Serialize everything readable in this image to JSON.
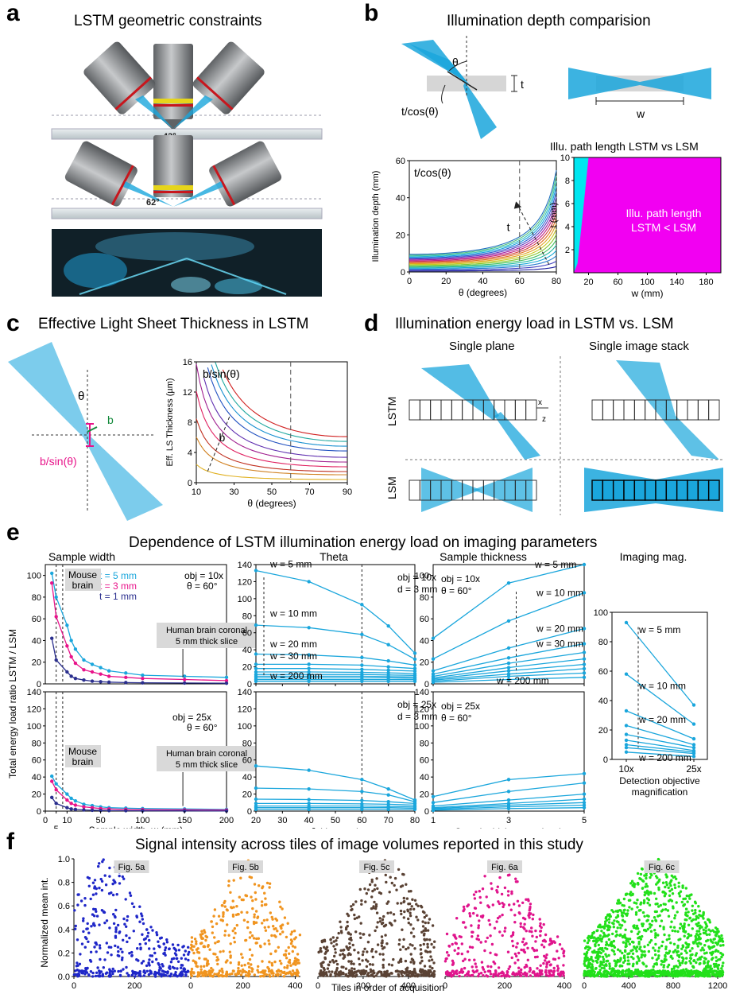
{
  "panels": {
    "a": {
      "letter": "a",
      "title": "LSTM geometric constraints",
      "angle_top": "43°",
      "angle_bottom": "62°"
    },
    "b": {
      "letter": "b",
      "title": "Illumination depth comparision",
      "label_theta": "θ",
      "label_t": "t",
      "label_tcos": "t/cos(θ)",
      "label_w": "w",
      "heatmap_title": "Illu. path length LSTM vs LSM",
      "heatmap_text_1": "Illu. path length",
      "heatmap_text_2": "LSTM < LSM"
    },
    "c": {
      "letter": "c",
      "title": "Effective Light Sheet Thickness in LSTM",
      "label_theta": "θ",
      "label_b": "b",
      "label_bsin": "b/sin(θ)"
    },
    "d": {
      "letter": "d",
      "title": "Illumination energy load in LSTM vs. LSM",
      "col1": "Single plane",
      "col2": "Single image stack",
      "row1": "LSTM",
      "row2": "LSM",
      "axis_x": "x",
      "axis_z": "z"
    },
    "e": {
      "letter": "e",
      "title": "Dependence of LSTM illumination energy load on imaging parameters",
      "shared_ylabel": "Total energy load ratio LSTM / LSM"
    },
    "f": {
      "letter": "f",
      "title": "Signal intensity across tiles of image volumes reported in this study",
      "ylabel": "Normalized mean int.",
      "xlabel": "Tiles in order of acquisition"
    }
  },
  "colors": {
    "cyan": "#1aa6dc",
    "magenta": "#e8138a",
    "navy": "#2b2f8e",
    "gray_box": "#d9d9d9",
    "heatmap_magenta": "#f200f2",
    "heatmap_cyan": "#00e6f0",
    "f_blue": "#1f27c8",
    "f_orange": "#f0941f",
    "f_brown": "#5a4234",
    "f_pink": "#e0148c",
    "f_green": "#22e01a"
  },
  "chart_data": [
    {
      "id": "b_depth",
      "type": "line",
      "title": "t/cos(θ)",
      "xlabel": "θ (degrees)",
      "ylabel": "Illumination depth (mm)",
      "xlim": [
        0,
        80
      ],
      "ylim": [
        0,
        60
      ],
      "xticks": [
        0,
        20,
        40,
        60,
        80
      ],
      "yticks": [
        0,
        20,
        40,
        60
      ],
      "formula": "t/cos(theta)",
      "t_values": [
        0.5,
        1,
        1.5,
        2,
        2.5,
        3,
        3.5,
        4,
        4.5,
        5,
        5.5,
        6,
        6.5,
        7,
        7.5,
        8,
        8.5,
        9,
        9.5
      ],
      "vline": 60,
      "arrow_label": "t"
    },
    {
      "id": "b_heatmap",
      "type": "heatmap",
      "title": "Illu. path length LSTM vs LSM",
      "xlabel": "w (mm)",
      "ylabel": "t (mm)",
      "xlim": [
        0,
        200
      ],
      "ylim": [
        0,
        10
      ],
      "xticks": [
        20,
        60,
        100,
        140,
        180
      ],
      "yticks": [
        2,
        4,
        6,
        8,
        10
      ]
    },
    {
      "id": "c_thickness",
      "type": "line",
      "title": "b/sin(θ)",
      "xlabel": "θ (degrees)",
      "ylabel": "Eff. LS Thickness (µm)",
      "xlim": [
        10,
        90
      ],
      "ylim": [
        0,
        16
      ],
      "xticks": [
        10,
        30,
        50,
        70,
        90
      ],
      "yticks": [
        0,
        4,
        8,
        12,
        16
      ],
      "formula": "b/sin(theta)",
      "b_values": [
        0.2,
        0.5,
        0.7,
        1.0,
        1.3,
        1.6,
        2.0,
        2.3,
        2.6,
        2.9
      ],
      "vline": 60,
      "arrow_label": "b"
    },
    {
      "id": "e_width_10x",
      "type": "line",
      "title": "Sample width",
      "ylim": [
        0,
        110
      ],
      "yticks": [
        0,
        20,
        40,
        60,
        80,
        100
      ],
      "xlim": [
        0,
        200
      ],
      "annotations": [
        "obj = 10x",
        "θ = 60°",
        "Mouse brain",
        "Human brain coronal 5 mm thick slice"
      ],
      "series": [
        {
          "name": "t = 5 mm",
          "color": "#1aa6dc",
          "x": [
            3,
            5,
            10,
            15,
            20,
            30,
            40,
            50,
            60,
            80,
            100,
            150,
            200
          ],
          "y": [
            102,
            80,
            54,
            40,
            32,
            22,
            18,
            15,
            12,
            10,
            8,
            7,
            6
          ]
        },
        {
          "name": "t = 3 mm",
          "color": "#e8138a",
          "x": [
            3,
            5,
            10,
            15,
            20,
            30,
            40,
            50,
            60,
            80,
            100,
            150,
            200
          ],
          "y": [
            93,
            62,
            35,
            25,
            19,
            13,
            11,
            9,
            7,
            6,
            5,
            4,
            3
          ]
        },
        {
          "name": "t = 1 mm",
          "color": "#2b2f8e",
          "x": [
            3,
            5,
            10,
            15,
            20,
            30,
            40,
            50,
            60,
            80,
            100,
            150,
            200
          ],
          "y": [
            42,
            22,
            11,
            7,
            5,
            3.5,
            2.5,
            2,
            1.6,
            1.2,
            1,
            0.8,
            0.6
          ]
        }
      ]
    },
    {
      "id": "e_width_25x",
      "type": "line",
      "xlabel": "Sample width, w (mm)",
      "ylim": [
        0,
        140
      ],
      "yticks": [
        0,
        20,
        40,
        60,
        80,
        100,
        120,
        140
      ],
      "xticks_labels": [
        "0",
        "5",
        "10",
        "50",
        "100",
        "150",
        "200"
      ],
      "annotations": [
        "obj = 25x",
        "θ = 60°",
        "Mouse brain",
        "Human brain coronal 5 mm thick slice"
      ],
      "series": [
        {
          "name": "t = 5 mm",
          "color": "#1aa6dc",
          "x": [
            3,
            5,
            10,
            15,
            20,
            30,
            40,
            50,
            60,
            80,
            100,
            150,
            200
          ],
          "y": [
            41,
            32,
            20,
            15,
            12,
            8,
            6.5,
            5,
            4,
            3.5,
            3,
            2.5,
            2
          ]
        },
        {
          "name": "t = 3 mm",
          "color": "#e8138a",
          "x": [
            3,
            5,
            10,
            15,
            20,
            30,
            40,
            50,
            60,
            80,
            100,
            150,
            200
          ],
          "y": [
            35,
            25,
            13,
            9,
            7,
            5,
            4,
            3,
            2.5,
            2,
            1.8,
            1.5,
            1.2
          ]
        },
        {
          "name": "t = 1 mm",
          "color": "#2b2f8e",
          "x": [
            3,
            5,
            10,
            15,
            20,
            30,
            40,
            50,
            60,
            80,
            100,
            150,
            200
          ],
          "y": [
            16,
            9,
            4,
            2.5,
            2,
            1.4,
            1,
            0.8,
            0.6,
            0.5,
            0.4,
            0.3,
            0.2
          ]
        }
      ]
    },
    {
      "id": "e_theta_10x",
      "type": "line",
      "title": "Theta",
      "xlim": [
        20,
        80
      ],
      "ylim": [
        0,
        140
      ],
      "yticks": [
        0,
        20,
        40,
        60,
        80,
        100,
        120,
        140
      ],
      "annotations": [
        "obj = 10x",
        "d = 3 mm",
        "w = 5 mm",
        "w = 10 mm",
        "w = 20 mm",
        "w = 30 mm",
        "w = 200 mm"
      ],
      "x": [
        20,
        40,
        60,
        70,
        80
      ],
      "series": [
        {
          "name": "w = 5 mm",
          "y": [
            133,
            120,
            93,
            68,
            36
          ]
        },
        {
          "name": "w = 10 mm",
          "y": [
            69,
            66,
            58,
            46,
            29
          ]
        },
        {
          "name": "w = 20 mm",
          "y": [
            35,
            34,
            31,
            27,
            22
          ]
        },
        {
          "name": "w = 30 mm",
          "y": [
            23,
            23,
            22,
            20,
            18
          ]
        },
        {
          "y": [
            18,
            18,
            17,
            16,
            15
          ]
        },
        {
          "y": [
            14,
            14,
            13.5,
            13,
            12
          ]
        },
        {
          "y": [
            11,
            11,
            11,
            10.5,
            10
          ]
        },
        {
          "y": [
            9,
            9,
            9,
            8.5,
            8
          ]
        },
        {
          "y": [
            7,
            7,
            7,
            7,
            6.5
          ]
        },
        {
          "y": [
            5,
            5,
            5,
            5,
            5
          ]
        },
        {
          "name": "w = 200 mm",
          "y": [
            3,
            3,
            3,
            3,
            3
          ]
        }
      ]
    },
    {
      "id": "e_theta_25x",
      "type": "line",
      "xlabel": "θ (degrees)",
      "xlim": [
        20,
        80
      ],
      "ylim": [
        0,
        140
      ],
      "xticks": [
        20,
        30,
        40,
        50,
        60,
        70,
        80
      ],
      "yticks": [
        0,
        20,
        40,
        60,
        80,
        100,
        120,
        140
      ],
      "annotations": [
        "obj = 25x",
        "d = 3 mm"
      ],
      "x": [
        20,
        40,
        60,
        70,
        80
      ],
      "series": [
        {
          "y": [
            53,
            48,
            37,
            26,
            13
          ]
        },
        {
          "y": [
            27,
            26,
            23,
            19,
            11
          ]
        },
        {
          "y": [
            14,
            13.5,
            12.5,
            11,
            9
          ]
        },
        {
          "y": [
            9,
            9,
            8.5,
            8,
            7
          ]
        },
        {
          "y": [
            6,
            6,
            6,
            5.5,
            5
          ]
        },
        {
          "y": [
            4,
            4,
            4,
            4,
            3.5
          ]
        },
        {
          "y": [
            2,
            2,
            2,
            2,
            2
          ]
        }
      ]
    },
    {
      "id": "e_thickness_10x",
      "type": "line",
      "title": "Sample thickness",
      "xlim": [
        1,
        5
      ],
      "ylim": [
        0,
        110
      ],
      "yticks": [
        0,
        20,
        40,
        60,
        80,
        100
      ],
      "annotations": [
        "obj = 10x",
        "θ = 60°",
        "w = 5 mm",
        "w = 10 mm",
        "w = 20 mm",
        "w = 30 mm",
        "w = 200 mm"
      ],
      "x": [
        1,
        3,
        5
      ],
      "series": [
        {
          "name": "w = 5 mm",
          "y": [
            42,
            93,
            110
          ]
        },
        {
          "name": "w = 10 mm",
          "y": [
            23,
            58,
            84
          ]
        },
        {
          "name": "w = 20 mm",
          "y": [
            12,
            33,
            51
          ]
        },
        {
          "name": "w = 30 mm",
          "y": [
            9,
            24,
            37
          ]
        },
        {
          "y": [
            7,
            19,
            29
          ]
        },
        {
          "y": [
            5.5,
            15,
            23
          ]
        },
        {
          "y": [
            4.5,
            12,
            18
          ]
        },
        {
          "y": [
            3.5,
            9,
            14
          ]
        },
        {
          "y": [
            2.5,
            7,
            10
          ]
        },
        {
          "name": "w = 200 mm",
          "y": [
            1.5,
            4,
            6
          ]
        }
      ]
    },
    {
      "id": "e_thickness_25x",
      "type": "line",
      "xlabel": "Sample thickness, t (mm)",
      "xlim": [
        1,
        5
      ],
      "ylim": [
        0,
        140
      ],
      "xticks": [
        1,
        3,
        5
      ],
      "yticks": [
        0,
        20,
        40,
        60,
        80,
        100,
        120,
        140
      ],
      "annotations": [
        "obj = 25x",
        "θ = 60°"
      ],
      "x": [
        1,
        3,
        5
      ],
      "series": [
        {
          "y": [
            17,
            37,
            44
          ]
        },
        {
          "y": [
            10,
            23,
            33
          ]
        },
        {
          "y": [
            6,
            13,
            20
          ]
        },
        {
          "y": [
            4,
            9,
            14
          ]
        },
        {
          "y": [
            3,
            7,
            10
          ]
        },
        {
          "y": [
            2,
            5,
            7
          ]
        },
        {
          "y": [
            1,
            3,
            4
          ]
        }
      ]
    },
    {
      "id": "e_mag",
      "type": "line",
      "title": "Imaging mag.",
      "xlabel": "Detection objective magnification",
      "categories": [
        "10x",
        "25x"
      ],
      "ylim": [
        0,
        100
      ],
      "yticks": [
        0,
        20,
        40,
        60,
        80,
        100
      ],
      "annotations": [
        "w = 5 mm",
        "w = 10 mm",
        "w = 20 mm",
        "w = 200 mm"
      ],
      "series": [
        {
          "name": "w = 5 mm",
          "y": [
            93,
            37
          ]
        },
        {
          "name": "w = 10 mm",
          "y": [
            58,
            24
          ]
        },
        {
          "name": "w = 20 mm",
          "y": [
            33,
            14
          ]
        },
        {
          "y": [
            23,
            10
          ]
        },
        {
          "y": [
            17,
            8
          ]
        },
        {
          "y": [
            13,
            6
          ]
        },
        {
          "y": [
            10,
            5
          ]
        },
        {
          "y": [
            8,
            4
          ]
        },
        {
          "name": "w = 200 mm",
          "y": [
            5,
            2
          ]
        }
      ]
    },
    {
      "id": "f_scatter",
      "type": "scatter",
      "ylim": [
        0,
        1
      ],
      "yticks": [
        0,
        0.2,
        0.4,
        0.6,
        0.8,
        1.0
      ],
      "subplots": [
        {
          "name": "Fig. 5a",
          "color": "#1f27c8",
          "n": 380,
          "xmax": 380,
          "xticks": [
            0,
            200
          ],
          "peak": 100,
          "seed": 11
        },
        {
          "name": "Fig. 5b",
          "color": "#f0941f",
          "n": 420,
          "xmax": 420,
          "xticks": [
            0,
            200,
            400
          ],
          "peak": 220,
          "seed": 23
        },
        {
          "name": "Fig. 5c",
          "color": "#5a4234",
          "n": 520,
          "xmax": 520,
          "xticks": [
            0,
            200,
            400
          ],
          "peak": 300,
          "seed": 37
        },
        {
          "name": "Fig. 6a",
          "color": "#e0148c",
          "n": 400,
          "xmax": 400,
          "xticks": [
            0,
            200,
            400
          ],
          "peak": 180,
          "seed": 41
        },
        {
          "name": "Fig. 6c",
          "color": "#22e01a",
          "n": 1250,
          "xmax": 1250,
          "xticks": [
            0,
            400,
            800,
            1200
          ],
          "peak": 650,
          "seed": 53
        }
      ]
    }
  ]
}
